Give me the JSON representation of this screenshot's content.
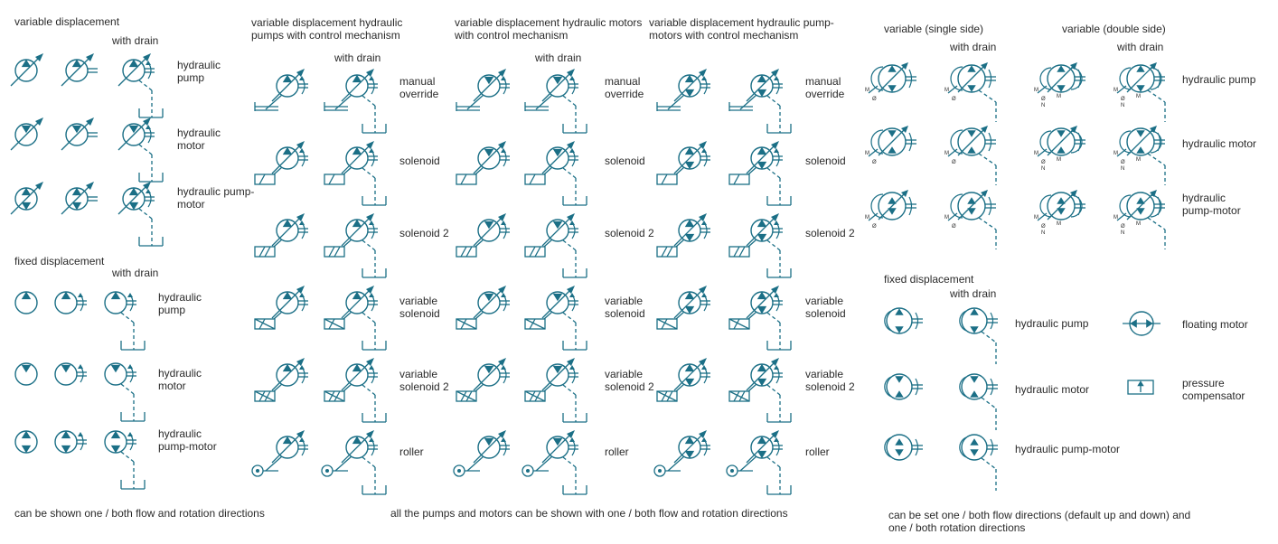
{
  "colors": {
    "stroke": "#1b6f86",
    "text": "#2a2a2a"
  },
  "left": {
    "variable": {
      "heading": "variable displacement",
      "with_drain": "with drain",
      "rows": [
        {
          "label": "hydraulic\npump"
        },
        {
          "label": "hydraulic\nmotor"
        },
        {
          "label": "hydraulic pump-\nmotor"
        }
      ]
    },
    "fixed": {
      "heading": "fixed displacement",
      "with_drain": "with drain",
      "rows": [
        {
          "label": "hydraulic\npump"
        },
        {
          "label": "hydraulic\nmotor"
        },
        {
          "label": "hydraulic\npump-motor"
        }
      ]
    },
    "footnote": "can be shown one / both flow and rotation directions"
  },
  "middle": {
    "columns": [
      {
        "title": "variable displacement hydraulic\npumps with control mechanism",
        "with_drain": "with drain"
      },
      {
        "title": "variable displacement hydraulic motors\nwith control mechanism",
        "with_drain": "with drain"
      },
      {
        "title": "variable displacement hydraulic pump-\nmotors with control mechanism",
        "with_drain": ""
      }
    ],
    "controls": [
      "manual\noverride",
      "solenoid",
      "solenoid 2",
      "variable\nsolenoid",
      "variable\nsolenoid 2",
      "roller"
    ],
    "footnote": "all the pumps and motors can be shown with one / both flow and rotation directions"
  },
  "right": {
    "variable": {
      "single_heading": "variable (single side)",
      "double_heading": "variable (double side)",
      "with_drain_single": "with drain",
      "with_drain_double": "with drain",
      "rows": [
        {
          "label": "hydraulic pump"
        },
        {
          "label": "hydraulic motor"
        },
        {
          "label": "hydraulic\npump-motor"
        }
      ],
      "marks": {
        "m": "M",
        "o": "Ø",
        "n": "N"
      }
    },
    "fixed": {
      "heading": "fixed displacement",
      "with_drain": "with drain",
      "rows": [
        {
          "label": "hydraulic pump"
        },
        {
          "label": "hydraulic motor"
        },
        {
          "label": "hydraulic pump-motor"
        }
      ],
      "floating_motor": "floating motor",
      "pressure_compensator": "pressure\ncompensator"
    },
    "footnote": "can be set one / both flow directions (default up and down) and\none / both rotation directions"
  }
}
